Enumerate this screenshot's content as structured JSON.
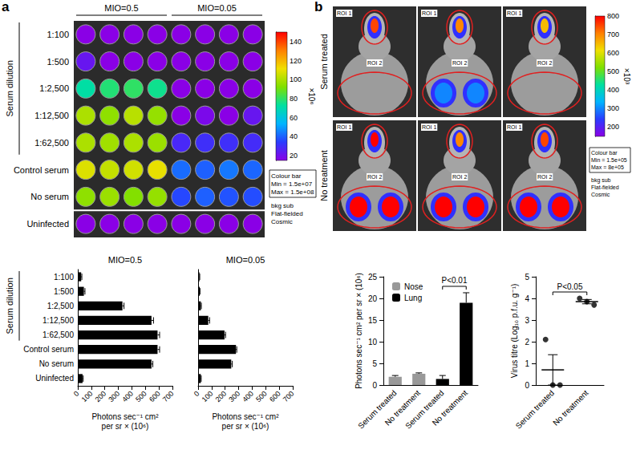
{
  "panel_labels": [
    "a",
    "b"
  ],
  "chart_data": [
    {
      "type": "heatmap",
      "column_groups": [
        "MIO=0.5",
        "MIO=0.05"
      ],
      "row_group_label": "Serum dilution",
      "rows": [
        "1:100",
        "1:500",
        "1:2,500",
        "1:12,500",
        "1:62,500",
        "Control serum",
        "No serum",
        "Uninfected"
      ],
      "cells": [
        [
          4,
          4,
          4,
          4,
          3,
          3,
          3,
          3
        ],
        [
          22,
          5,
          5,
          5,
          3,
          3,
          3,
          3
        ],
        [
          72,
          78,
          80,
          75,
          3,
          3,
          3,
          3
        ],
        [
          100,
          95,
          102,
          96,
          5,
          18,
          5,
          22
        ],
        [
          100,
          98,
          100,
          97,
          28,
          30,
          30,
          29
        ],
        [
          108,
          104,
          106,
          110,
          42,
          40,
          44,
          41
        ],
        [
          95,
          97,
          93,
          96,
          36,
          40,
          38,
          37
        ],
        [
          3,
          3,
          3,
          3,
          3,
          3,
          3,
          3
        ]
      ],
      "colorbar": {
        "range": [
          15,
          150
        ],
        "ticks": [
          20,
          40,
          60,
          80,
          100,
          120,
          140
        ],
        "label": "×10⁶",
        "legend_box": [
          "Colour bar",
          "Min = 1.5e+07",
          "Max = 1.5e+08"
        ]
      },
      "notes": [
        "bkg sub",
        "Flat-fielded",
        "Cosmic"
      ]
    },
    {
      "type": "bar",
      "orientation": "horizontal",
      "title": "MIO=0.5",
      "row_group_label": "Serum dilution",
      "categories": [
        "1:100",
        "1:500",
        "1:2,500",
        "1:12,500",
        "1:62,500",
        "Control serum",
        "No serum",
        "Uninfected"
      ],
      "values": [
        25,
        45,
        330,
        545,
        590,
        590,
        545,
        35
      ],
      "errors": [
        5,
        8,
        12,
        15,
        15,
        15,
        10,
        5
      ],
      "color": "#000000",
      "xlim": [
        0,
        700
      ],
      "xticks": [
        0,
        100,
        200,
        300,
        400,
        500,
        600,
        700
      ],
      "x_label": "Photons sec⁻¹ cm²\nper sr × (10⁶)"
    },
    {
      "type": "bar",
      "orientation": "horizontal",
      "title": "MIO=0.05",
      "tick_labels": "x",
      "categories": [
        "1:100",
        "1:500",
        "1:2,500",
        "1:12,500",
        "1:62,500",
        "Control serum",
        "No serum",
        "Uninfected"
      ],
      "values": [
        10,
        12,
        20,
        75,
        195,
        280,
        245,
        20
      ],
      "errors": [
        2,
        2,
        4,
        10,
        8,
        6,
        8,
        3
      ],
      "color": "#000000",
      "xlim": [
        0,
        700
      ],
      "xticks": [
        0,
        100,
        200,
        300,
        400,
        500,
        600,
        700
      ],
      "x_label": "Photons sec⁻¹ cm²\nper sr × (10⁶)"
    },
    {
      "type": "bar",
      "categories": [
        "Serum treated",
        "No treatment",
        "Serum treated",
        "No treatment"
      ],
      "series": [
        {
          "name": "Nose",
          "color": "#999999",
          "values": [
            1.9,
            2.6,
            null,
            null
          ],
          "errors": [
            0.3,
            0.2,
            null,
            null
          ]
        },
        {
          "name": "Lung",
          "color": "#000000",
          "values": [
            null,
            null,
            1.4,
            19
          ],
          "errors": [
            null,
            null,
            0.8,
            2.3
          ]
        }
      ],
      "ylim": [
        0,
        25
      ],
      "yticks": [
        0,
        5,
        10,
        15,
        20,
        25
      ],
      "y_label": "Photons sec⁻¹ cm² per sr × (10⁶)",
      "legend": "top-left",
      "annotations": [
        {
          "text": "P<0.01",
          "between": [
            2,
            3
          ]
        }
      ]
    },
    {
      "type": "scatter",
      "marker": "circle",
      "color": "#000000",
      "categories": [
        "Serum treated",
        "No treatment"
      ],
      "points": [
        [
          2.1,
          0,
          0
        ],
        [
          4.0,
          3.85,
          3.7
        ]
      ],
      "means": [
        0.7,
        3.85
      ],
      "errors": [
        0.7,
        0.1
      ],
      "ylim": [
        0,
        5
      ],
      "yticks": [
        0,
        1,
        2,
        3,
        4,
        5
      ],
      "y_label": "Virus titre (Log₁₀ p.f.u. g⁻¹)",
      "annotations": [
        {
          "text": "P<0.05",
          "between": [
            0,
            1
          ]
        }
      ]
    }
  ],
  "mouse_images": {
    "rows": [
      "Serum treated",
      "No treatment"
    ],
    "roi_labels": [
      "ROI 1",
      "ROI 2"
    ],
    "nose_signal": [
      [
        750,
        700,
        650
      ],
      [
        800,
        700,
        750
      ]
    ],
    "lung_signal": [
      [
        0,
        300,
        0
      ],
      [
        800,
        800,
        800
      ]
    ],
    "colorbar": {
      "range": [
        150,
        800
      ],
      "ticks": [
        200,
        300,
        400,
        500,
        600,
        700,
        800
      ],
      "label": "×10³",
      "legend_box": [
        "Colour bar",
        "Min = 1.5e+05",
        "Max = 8e+05"
      ]
    },
    "notes": [
      "bkg sub",
      "Flat-fielded",
      "Cosmic"
    ]
  }
}
